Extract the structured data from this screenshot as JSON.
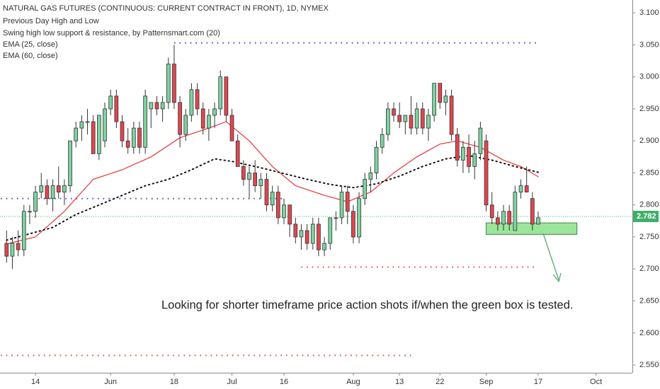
{
  "chart_data": {
    "type": "candlestick",
    "title": "NATURAL GAS FUTURES (CONTINUOUS: CURRENT CONTRACT IN FRONT), 1D, NYMEX",
    "indicators": [
      "Previous Day High and Low",
      "Swing high low support & resistance, by Patternsmart.com (20)"
    ],
    "annotation": "Looking for shorter timeframe price action shots if/when the green box is tested.",
    "up_color": "#7fd3a0",
    "down_color": "#e0474f",
    "x": [
      0,
      1,
      2,
      3,
      4,
      5,
      6,
      7,
      8,
      9,
      10,
      11,
      12,
      13,
      14,
      15,
      16,
      17,
      18,
      19,
      20,
      21,
      22,
      23,
      24,
      25,
      26,
      27,
      28,
      29,
      30,
      31,
      32,
      33,
      34,
      35,
      36,
      37,
      38,
      39,
      40,
      41,
      42,
      43,
      44,
      45,
      46,
      47,
      48,
      49,
      50,
      51,
      52,
      53,
      54,
      55,
      56,
      57,
      58,
      59,
      60,
      61,
      62,
      63,
      64,
      65,
      66,
      67,
      68,
      69,
      70,
      71,
      72,
      73,
      74,
      75,
      76,
      77,
      78,
      79,
      80,
      81,
      82,
      83,
      84,
      85,
      86,
      87,
      88,
      89,
      90,
      91,
      92
    ],
    "open": [
      2.74,
      2.72,
      2.74,
      2.73,
      2.79,
      2.79,
      2.82,
      2.83,
      2.81,
      2.83,
      2.82,
      2.83,
      2.9,
      2.92,
      2.93,
      2.93,
      2.88,
      2.9,
      2.95,
      2.97,
      2.93,
      2.9,
      2.89,
      2.92,
      2.89,
      2.95,
      2.96,
      2.95,
      2.96,
      3.02,
      2.96,
      2.91,
      2.94,
      2.98,
      2.95,
      2.92,
      2.94,
      2.95,
      3.0,
      2.94,
      2.9,
      2.86,
      2.84,
      2.85,
      2.83,
      2.84,
      2.8,
      2.82,
      2.78,
      2.8,
      2.77,
      2.75,
      2.76,
      2.74,
      2.77,
      2.73,
      2.74,
      2.78,
      2.78,
      2.82,
      2.79,
      2.75,
      2.81,
      2.84,
      2.85,
      2.89,
      2.91,
      2.95,
      2.94,
      2.93,
      2.94,
      2.92,
      2.95,
      2.92,
      2.94,
      2.99,
      2.96,
      2.97,
      2.91,
      2.87,
      2.89,
      2.86,
      2.88,
      2.9,
      2.8,
      2.78,
      2.77,
      2.79,
      2.76,
      2.82,
      2.83,
      2.81,
      2.77
    ],
    "high": [
      2.76,
      2.75,
      2.76,
      2.8,
      2.8,
      2.83,
      2.85,
      2.84,
      2.84,
      2.86,
      2.84,
      2.9,
      2.93,
      2.94,
      2.95,
      2.94,
      2.94,
      2.96,
      2.98,
      2.98,
      2.94,
      2.92,
      2.93,
      2.93,
      2.98,
      2.96,
      2.97,
      2.97,
      3.03,
      3.05,
      2.97,
      2.95,
      2.99,
      2.99,
      2.96,
      2.95,
      2.96,
      3.01,
      3.0,
      2.95,
      2.91,
      2.87,
      2.86,
      2.87,
      2.85,
      2.85,
      2.83,
      2.83,
      2.81,
      2.8,
      2.78,
      2.77,
      2.77,
      2.78,
      2.78,
      2.75,
      2.78,
      2.79,
      2.83,
      2.83,
      2.8,
      2.82,
      2.85,
      2.86,
      2.9,
      2.92,
      2.96,
      2.96,
      2.96,
      2.94,
      2.97,
      2.96,
      2.96,
      2.95,
      2.99,
      2.99,
      2.98,
      2.98,
      2.92,
      2.9,
      2.91,
      2.9,
      2.93,
      2.91,
      2.82,
      2.79,
      2.8,
      2.8,
      2.83,
      2.84,
      2.86,
      2.82,
      2.79
    ],
    "low": [
      2.71,
      2.7,
      2.72,
      2.72,
      2.77,
      2.78,
      2.81,
      2.8,
      2.79,
      2.81,
      2.8,
      2.82,
      2.89,
      2.9,
      2.91,
      2.88,
      2.87,
      2.89,
      2.94,
      2.92,
      2.89,
      2.88,
      2.88,
      2.88,
      2.88,
      2.92,
      2.94,
      2.93,
      2.95,
      2.95,
      2.89,
      2.9,
      2.93,
      2.94,
      2.91,
      2.9,
      2.92,
      2.94,
      2.93,
      2.9,
      2.86,
      2.83,
      2.81,
      2.82,
      2.81,
      2.79,
      2.79,
      2.77,
      2.77,
      2.75,
      2.74,
      2.73,
      2.73,
      2.73,
      2.72,
      2.72,
      2.73,
      2.76,
      2.77,
      2.77,
      2.74,
      2.74,
      2.8,
      2.82,
      2.84,
      2.88,
      2.9,
      2.93,
      2.92,
      2.91,
      2.91,
      2.91,
      2.91,
      2.9,
      2.93,
      2.95,
      2.94,
      2.9,
      2.86,
      2.85,
      2.85,
      2.84,
      2.87,
      2.79,
      2.77,
      2.76,
      2.76,
      2.76,
      2.76,
      2.81,
      2.82,
      2.76,
      2.77
    ],
    "close": [
      2.72,
      2.74,
      2.73,
      2.79,
      2.79,
      2.82,
      2.83,
      2.81,
      2.83,
      2.82,
      2.83,
      2.9,
      2.92,
      2.93,
      2.93,
      2.88,
      2.94,
      2.95,
      2.97,
      2.93,
      2.9,
      2.89,
      2.92,
      2.89,
      2.97,
      2.96,
      2.95,
      2.96,
      3.02,
      2.96,
      2.91,
      2.94,
      2.98,
      2.95,
      2.92,
      2.94,
      2.95,
      3.0,
      2.94,
      2.9,
      2.86,
      2.84,
      2.85,
      2.83,
      2.84,
      2.8,
      2.82,
      2.78,
      2.8,
      2.77,
      2.75,
      2.76,
      2.74,
      2.77,
      2.73,
      2.74,
      2.78,
      2.78,
      2.82,
      2.79,
      2.75,
      2.81,
      2.84,
      2.85,
      2.89,
      2.91,
      2.95,
      2.94,
      2.93,
      2.94,
      2.92,
      2.95,
      2.92,
      2.94,
      2.99,
      2.96,
      2.97,
      2.91,
      2.87,
      2.89,
      2.86,
      2.88,
      2.92,
      2.8,
      2.78,
      2.77,
      2.79,
      2.77,
      2.82,
      2.83,
      2.82,
      2.77,
      2.78
    ],
    "series": [
      {
        "name": "EMA (25, close)",
        "color": "#e8343a",
        "style": "solid",
        "x": [
          0,
          5,
          10,
          15,
          20,
          25,
          30,
          35,
          38,
          42,
          46,
          50,
          55,
          59,
          63,
          67,
          71,
          75,
          78,
          82,
          86,
          89,
          92
        ],
        "values": [
          2.739,
          2.75,
          2.79,
          2.84,
          2.855,
          2.875,
          2.905,
          2.92,
          2.93,
          2.9,
          2.86,
          2.83,
          2.815,
          2.805,
          2.82,
          2.85,
          2.875,
          2.895,
          2.9,
          2.89,
          2.87,
          2.86,
          2.844
        ]
      },
      {
        "name": "EMA (60, close)",
        "color": "#111111",
        "style": "dotted",
        "x": [
          0,
          4,
          8,
          12,
          16,
          20,
          24,
          28,
          32,
          36,
          39,
          44,
          48,
          52,
          56,
          60,
          64,
          68,
          72,
          76,
          80,
          84,
          88,
          92
        ],
        "values": [
          2.745,
          2.755,
          2.765,
          2.785,
          2.8,
          2.815,
          2.83,
          2.84,
          2.855,
          2.872,
          2.868,
          2.858,
          2.849,
          2.84,
          2.832,
          2.827,
          2.833,
          2.845,
          2.86,
          2.872,
          2.877,
          2.87,
          2.86,
          2.851
        ]
      }
    ],
    "levels": [
      {
        "value": 3.053,
        "color": "#4a4ab8",
        "from": 29,
        "to": 92
      },
      {
        "value": 2.81,
        "color": "#4a4ab8",
        "from": -1,
        "to": 48
      },
      {
        "value": 2.703,
        "color": "#e0474f",
        "from": 51,
        "to": 92
      },
      {
        "value": 2.565,
        "color": "#e0474f",
        "from": -1,
        "to": 70
      }
    ],
    "zone": {
      "low": 2.754,
      "high": 2.772,
      "from": 83,
      "to": 98.7,
      "color": "#9ce59a"
    },
    "last_price": {
      "value": 2.782,
      "label": "2.782",
      "color": "#3fae6a"
    },
    "xlim": [
      -1.14,
      108.3
    ],
    "xticks": [
      {
        "value": 5,
        "label": "14"
      },
      {
        "value": 18,
        "label": "Jun"
      },
      {
        "value": 29,
        "label": "18"
      },
      {
        "value": 39,
        "label": "Jul"
      },
      {
        "value": 48,
        "label": "16"
      },
      {
        "value": 60,
        "label": "Aug"
      },
      {
        "value": 68,
        "label": "13"
      },
      {
        "value": 75,
        "label": "22"
      },
      {
        "value": 83,
        "label": "Sep"
      },
      {
        "value": 92,
        "label": "17"
      },
      {
        "value": 102,
        "label": "Oct"
      }
    ],
    "ylim": [
      2.538,
      3.12
    ],
    "yticks": [
      {
        "value": 2.55,
        "label": "2.550"
      },
      {
        "value": 2.6,
        "label": "2.600"
      },
      {
        "value": 2.65,
        "label": "2.650"
      },
      {
        "value": 2.7,
        "label": "2.700"
      },
      {
        "value": 2.75,
        "label": "2.750"
      },
      {
        "value": 2.8,
        "label": "2.800"
      },
      {
        "value": 2.85,
        "label": "2.850"
      },
      {
        "value": 2.9,
        "label": "2.900"
      },
      {
        "value": 2.95,
        "label": "2.950"
      },
      {
        "value": 3.0,
        "label": "3.000"
      },
      {
        "value": 3.05,
        "label": "3.050"
      },
      {
        "value": 3.1,
        "label": "3.100"
      }
    ]
  }
}
